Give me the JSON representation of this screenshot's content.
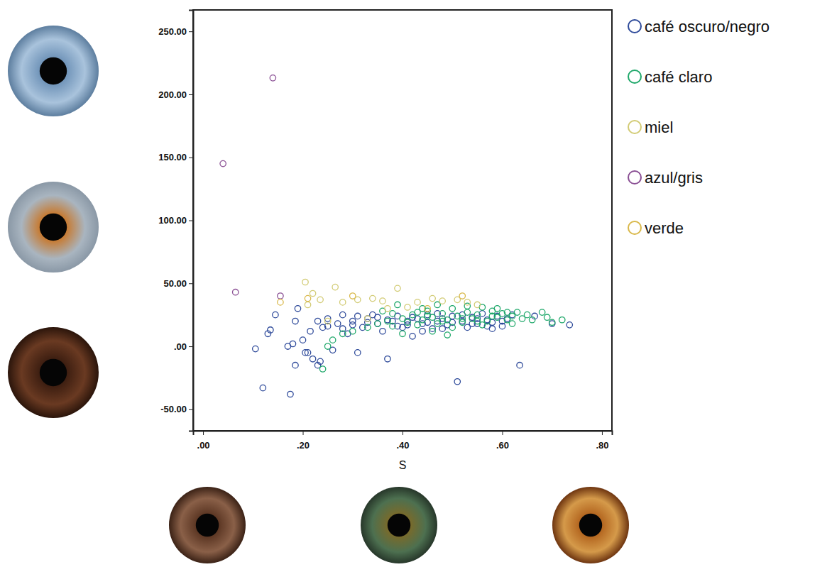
{
  "chart_data": {
    "type": "scatter",
    "x_label": "S",
    "xlim": [
      -0.02,
      0.82
    ],
    "ylim": [
      -67,
      267
    ],
    "xticks": [
      {
        "value": 0,
        "label": ".00"
      },
      {
        "value": 0.2,
        "label": ".20"
      },
      {
        "value": 0.4,
        "label": ".40"
      },
      {
        "value": 0.6,
        "label": ".60"
      },
      {
        "value": 0.8,
        "label": ".80"
      }
    ],
    "yticks": [
      {
        "value": -50,
        "label": "-50.00"
      },
      {
        "value": 0,
        "label": ".00"
      },
      {
        "value": 50,
        "label": "50.00"
      },
      {
        "value": 100,
        "label": "100.00"
      },
      {
        "value": 150,
        "label": "150.00"
      },
      {
        "value": 200,
        "label": "200.00"
      },
      {
        "value": 250,
        "label": "250.00"
      }
    ],
    "grid": false,
    "legend": "right",
    "marker": "circle-open",
    "series": [
      {
        "name": "café oscuro/negro",
        "color": "#2e4a9a",
        "x": [
          0.105,
          0.12,
          0.13,
          0.135,
          0.145,
          0.17,
          0.175,
          0.18,
          0.185,
          0.185,
          0.19,
          0.2,
          0.205,
          0.21,
          0.215,
          0.22,
          0.23,
          0.235,
          0.24,
          0.25,
          0.26,
          0.27,
          0.28,
          0.29,
          0.3,
          0.31,
          0.32,
          0.33,
          0.34,
          0.35,
          0.36,
          0.37,
          0.38,
          0.39,
          0.4,
          0.41,
          0.42,
          0.43,
          0.44,
          0.45,
          0.46,
          0.47,
          0.48,
          0.49,
          0.5,
          0.51,
          0.52,
          0.53,
          0.54,
          0.55,
          0.56,
          0.57,
          0.58,
          0.59,
          0.6,
          0.61,
          0.62,
          0.635,
          0.665,
          0.7,
          0.735,
          0.3,
          0.28,
          0.33,
          0.35,
          0.37,
          0.41,
          0.44,
          0.47,
          0.5,
          0.54,
          0.57,
          0.6,
          0.25,
          0.23,
          0.31,
          0.39,
          0.42,
          0.45,
          0.48,
          0.52,
          0.55,
          0.58
        ],
        "values": [
          -2,
          -33,
          10,
          13,
          25,
          0,
          -38,
          2,
          -15,
          20,
          30,
          5,
          -5,
          -5,
          12,
          -10,
          -15,
          -12,
          15,
          22,
          -3,
          18,
          25,
          10,
          20,
          -5,
          15,
          22,
          25,
          18,
          12,
          -10,
          20,
          24,
          15,
          20,
          8,
          22,
          18,
          25,
          14,
          20,
          22,
          17,
          24,
          -28,
          20,
          15,
          23,
          18,
          26,
          21,
          14,
          24,
          16,
          22,
          25,
          -15,
          24,
          18,
          17,
          17,
          14,
          19,
          23,
          21,
          17,
          12,
          26,
          19,
          18,
          16,
          20,
          16,
          20,
          24,
          16,
          23,
          19,
          14,
          25,
          22,
          19
        ]
      },
      {
        "name": "café claro",
        "color": "#1fa86a",
        "x": [
          0.24,
          0.25,
          0.26,
          0.28,
          0.3,
          0.33,
          0.35,
          0.37,
          0.38,
          0.4,
          0.41,
          0.42,
          0.43,
          0.44,
          0.45,
          0.46,
          0.47,
          0.48,
          0.49,
          0.5,
          0.51,
          0.52,
          0.53,
          0.54,
          0.55,
          0.56,
          0.57,
          0.58,
          0.59,
          0.6,
          0.61,
          0.62,
          0.63,
          0.64,
          0.65,
          0.66,
          0.68,
          0.69,
          0.7,
          0.72,
          0.36,
          0.39,
          0.44,
          0.47,
          0.5,
          0.53,
          0.56,
          0.59,
          0.62,
          0.46,
          0.49,
          0.43,
          0.4,
          0.38,
          0.52,
          0.55,
          0.58,
          0.61,
          0.48,
          0.45
        ],
        "values": [
          -18,
          0,
          5,
          10,
          12,
          15,
          18,
          20,
          16,
          22,
          19,
          25,
          17,
          21,
          28,
          23,
          18,
          26,
          21,
          30,
          24,
          19,
          27,
          22,
          25,
          31,
          20,
          28,
          23,
          26,
          21,
          24,
          27,
          22,
          25,
          21,
          27,
          23,
          19,
          21,
          28,
          33,
          30,
          33,
          15,
          32,
          17,
          30,
          18,
          12,
          9,
          27,
          10,
          26,
          22,
          20,
          24,
          27,
          20,
          24
        ]
      },
      {
        "name": "miel",
        "color": "#d2cb74",
        "x": [
          0.205,
          0.22,
          0.265,
          0.235,
          0.21,
          0.31,
          0.34,
          0.36,
          0.39,
          0.43,
          0.46,
          0.48,
          0.51,
          0.53,
          0.55,
          0.41,
          0.37,
          0.28,
          0.25,
          0.33
        ],
        "values": [
          51,
          42,
          47,
          37,
          33,
          37,
          38,
          36,
          46,
          35,
          38,
          36,
          37,
          35,
          33,
          31,
          30,
          35,
          20,
          22
        ]
      },
      {
        "name": "azul/gris",
        "color": "#8a4f94",
        "x": [
          0.14,
          0.04,
          0.065,
          0.155
        ],
        "values": [
          213,
          145,
          43,
          40
        ]
      },
      {
        "name": "verde",
        "color": "#d9b84a",
        "x": [
          0.155,
          0.21,
          0.3,
          0.52,
          0.45
        ],
        "values": [
          35,
          38,
          40,
          40,
          30
        ]
      }
    ]
  }
}
